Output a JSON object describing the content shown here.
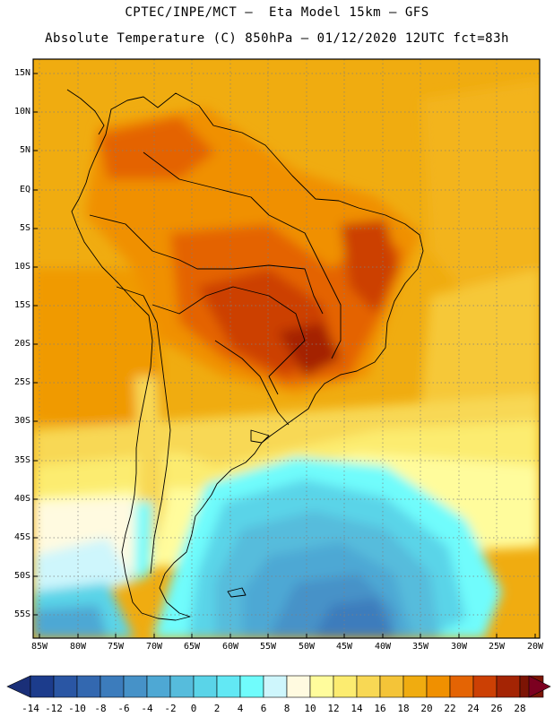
{
  "header": {
    "line1": "CPTEC/INPE/MCT –  Eta Model 15km – GFS",
    "line2": "Absolute Temperature (C) 850hPa – 01/12/2020 12UTC fct=83h"
  },
  "map": {
    "region": "South America",
    "lat_labels": [
      "15N",
      "10N",
      "5N",
      "EQ",
      "5S",
      "10S",
      "15S",
      "20S",
      "25S",
      "30S",
      "35S",
      "40S",
      "45S",
      "50S",
      "55S"
    ],
    "lon_labels": [
      "85W",
      "80W",
      "75W",
      "70W",
      "65W",
      "60W",
      "55W",
      "50W",
      "45W",
      "40W",
      "35W",
      "30W",
      "25W",
      "20W"
    ]
  },
  "colorbar": {
    "labels": [
      "-14",
      "-12",
      "-10",
      "-8",
      "-6",
      "-4",
      "-2",
      "0",
      "2",
      "4",
      "6",
      "8",
      "10",
      "12",
      "14",
      "16",
      "18",
      "20",
      "22",
      "24",
      "26",
      "28"
    ],
    "colors": [
      "#1c3c8c",
      "#2a56a4",
      "#3368b0",
      "#3c7cbc",
      "#4692c8",
      "#4ea8d4",
      "#56bcdc",
      "#5ad4e8",
      "#62e8f4",
      "#70fcfc",
      "#cef6fc",
      "#fffae0",
      "#fffc9c",
      "#fcec70",
      "#f8d854",
      "#f4c438",
      "#f0ac10",
      "#f09000",
      "#e46404",
      "#cc4004",
      "#a42404",
      "#7c1404"
    ],
    "under_color": "#1a2f78",
    "over_color": "#7c0020"
  }
}
